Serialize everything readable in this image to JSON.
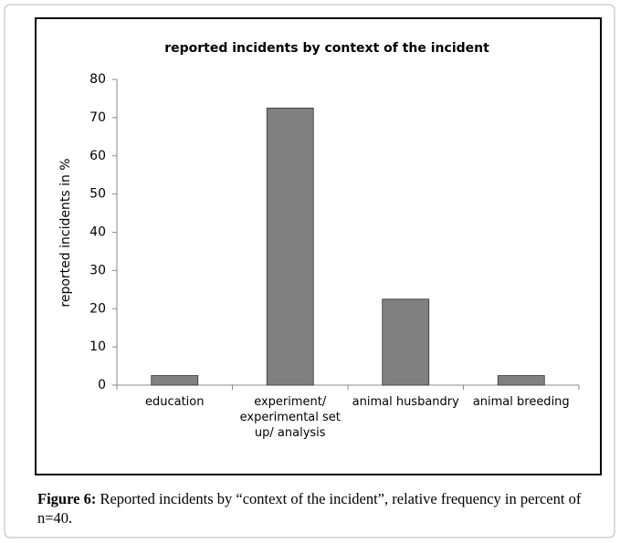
{
  "chart_data": {
    "type": "bar",
    "title": "reported incidents by context of the incident",
    "y_label": "reported incidents in %",
    "categories": [
      "education",
      "experiment/ experimental set up/ analysis",
      "animal husbandry",
      "animal breeding"
    ],
    "values": [
      2.5,
      72.5,
      22.5,
      2.5
    ],
    "color": "#808080",
    "ylim": [
      0,
      80
    ],
    "yticks": [
      0,
      10,
      20,
      30,
      40,
      50,
      60,
      70,
      80
    ],
    "grid": false
  },
  "caption": {
    "label": "Figure 6:",
    "text": "Reported incidents by “context of the incident”, relative frequency in percent of n=40."
  }
}
